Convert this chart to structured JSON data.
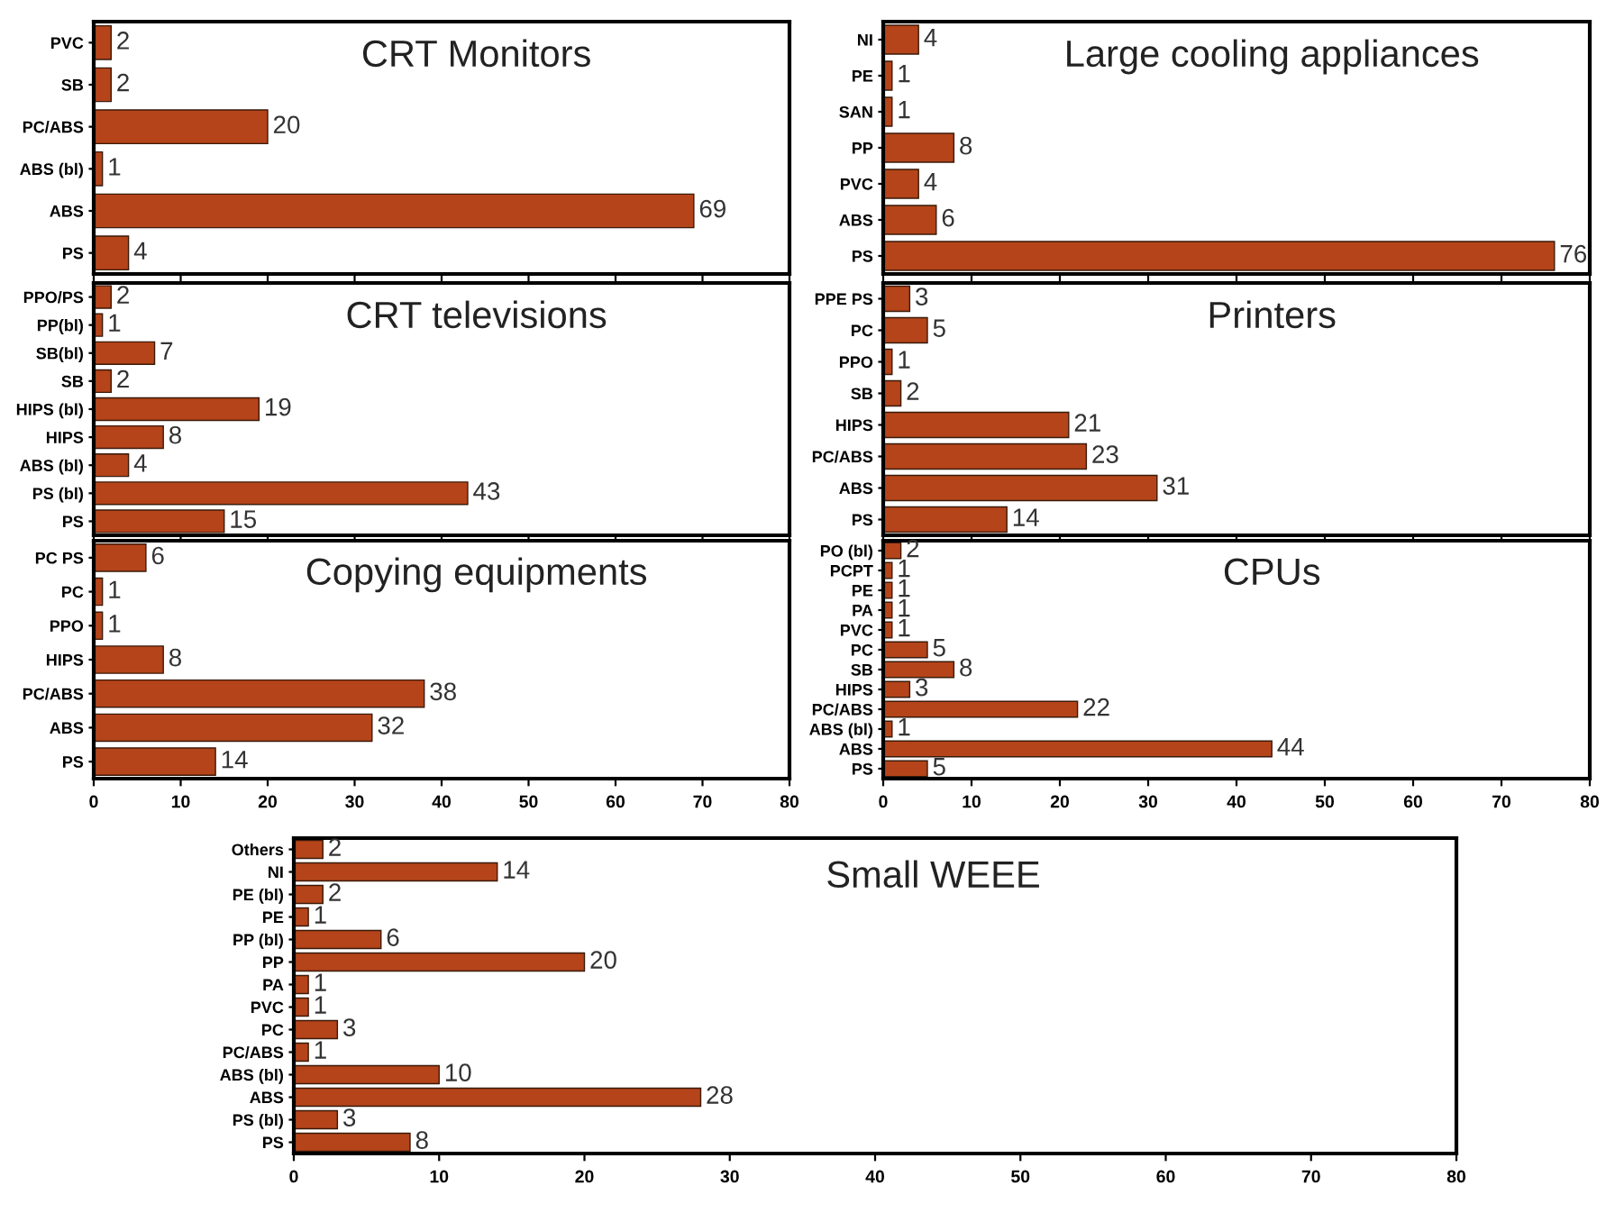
{
  "chart_data": [
    {
      "type": "bar",
      "orientation": "horizontal",
      "title": "CRT Monitors",
      "categories": [
        "PVC",
        "SB",
        "PC/ABS",
        "ABS (bl)",
        "ABS",
        "PS"
      ],
      "values": [
        2,
        2,
        20,
        1,
        69,
        4
      ],
      "color": "#b5441a",
      "data_labels": true,
      "xlim": [
        0,
        80
      ],
      "xticks": [
        0,
        10,
        20,
        30,
        40,
        50,
        60,
        70,
        80
      ],
      "tick_labels": "y"
    },
    {
      "type": "bar",
      "orientation": "horizontal",
      "title": "Large cooling appliances",
      "categories": [
        "NI",
        "PE",
        "SAN",
        "PP",
        "PVC",
        "ABS",
        "PS"
      ],
      "values": [
        4,
        1,
        1,
        8,
        4,
        6,
        76
      ],
      "color": "#b5441a",
      "data_labels": true,
      "xlim": [
        0,
        80
      ],
      "xticks": [
        0,
        10,
        20,
        30,
        40,
        50,
        60,
        70,
        80
      ],
      "tick_labels": "y"
    },
    {
      "type": "bar",
      "orientation": "horizontal",
      "title": "CRT televisions",
      "categories": [
        "PPO/PS",
        "PP(bl)",
        "SB(bl)",
        "SB",
        "HIPS (bl)",
        "HIPS",
        "ABS (bl)",
        "PS (bl)",
        "PS"
      ],
      "values": [
        2,
        1,
        7,
        2,
        19,
        8,
        4,
        43,
        15
      ],
      "color": "#b5441a",
      "data_labels": true,
      "xlim": [
        0,
        80
      ],
      "xticks": [
        0,
        10,
        20,
        30,
        40,
        50,
        60,
        70,
        80
      ],
      "tick_labels": "y"
    },
    {
      "type": "bar",
      "orientation": "horizontal",
      "title": "Printers",
      "categories": [
        "PPE PS",
        "PC",
        "PPO",
        "SB",
        "HIPS",
        "PC/ABS",
        "ABS",
        "PS"
      ],
      "values": [
        3,
        5,
        1,
        2,
        21,
        23,
        31,
        14
      ],
      "color": "#b5441a",
      "data_labels": true,
      "xlim": [
        0,
        80
      ],
      "xticks": [
        0,
        10,
        20,
        30,
        40,
        50,
        60,
        70,
        80
      ],
      "tick_labels": "y"
    },
    {
      "type": "bar",
      "orientation": "horizontal",
      "title": "Copying equipments",
      "categories": [
        "PC PS",
        "PC",
        "PPO",
        "HIPS",
        "PC/ABS",
        "ABS",
        "PS"
      ],
      "values": [
        6,
        1,
        1,
        8,
        38,
        32,
        14
      ],
      "color": "#b5441a",
      "data_labels": true,
      "xlim": [
        0,
        80
      ],
      "xticks": [
        0,
        10,
        20,
        30,
        40,
        50,
        60,
        70,
        80
      ]
    },
    {
      "type": "bar",
      "orientation": "horizontal",
      "title": "CPUs",
      "categories": [
        "PO (bl)",
        "PCPT",
        "PE",
        "PA",
        "PVC",
        "PC",
        "SB",
        "HIPS",
        "PC/ABS",
        "ABS (bl)",
        "ABS",
        "PS"
      ],
      "values": [
        2,
        1,
        1,
        1,
        1,
        5,
        8,
        3,
        22,
        1,
        44,
        5
      ],
      "color": "#b5441a",
      "data_labels": true,
      "xlim": [
        0,
        80
      ],
      "xticks": [
        0,
        10,
        20,
        30,
        40,
        50,
        60,
        70,
        80
      ]
    },
    {
      "type": "bar",
      "orientation": "horizontal",
      "title": "Small WEEE",
      "categories": [
        "Others",
        "NI",
        "PE (bl)",
        "PE",
        "PP (bl)",
        "PP",
        "PA",
        "PVC",
        "PC",
        "PC/ABS",
        "ABS (bl)",
        "ABS",
        "PS (bl)",
        "PS"
      ],
      "values": [
        2,
        14,
        2,
        1,
        6,
        20,
        1,
        1,
        3,
        1,
        10,
        28,
        3,
        8
      ],
      "color": "#b5441a",
      "data_labels": true,
      "xlim": [
        0,
        80
      ],
      "xticks": [
        0,
        10,
        20,
        30,
        40,
        50,
        60,
        70,
        80
      ]
    }
  ]
}
